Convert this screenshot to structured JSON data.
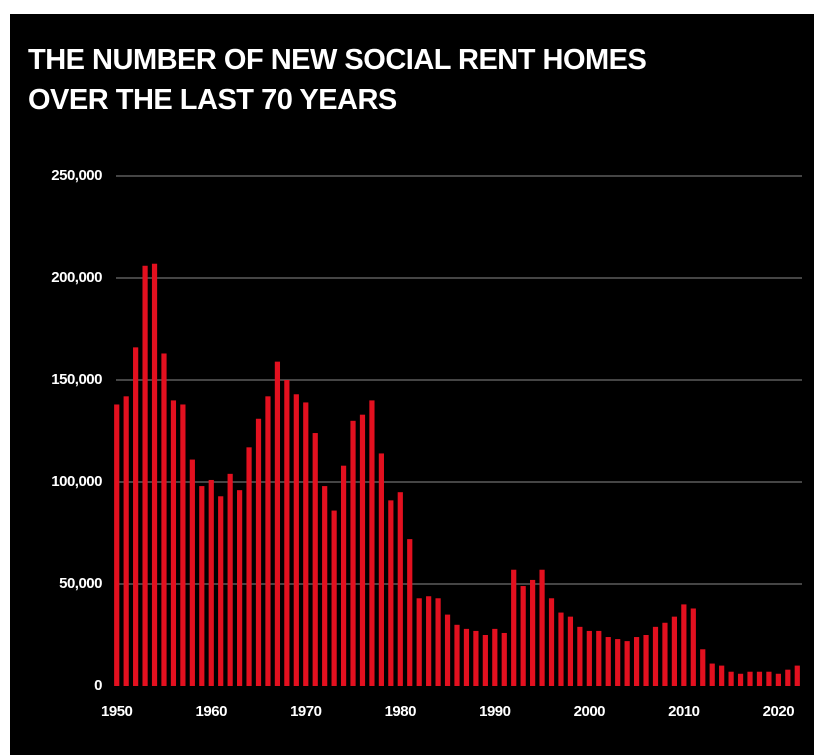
{
  "chart_data": {
    "type": "bar",
    "title": "THE NUMBER OF NEW SOCIAL RENT HOMES OVER THE LAST 70 YEARS",
    "x": [
      1950,
      1951,
      1952,
      1953,
      1954,
      1955,
      1956,
      1957,
      1958,
      1959,
      1960,
      1961,
      1962,
      1963,
      1964,
      1965,
      1966,
      1967,
      1968,
      1969,
      1970,
      1971,
      1972,
      1973,
      1974,
      1975,
      1976,
      1977,
      1978,
      1979,
      1980,
      1981,
      1982,
      1983,
      1984,
      1985,
      1986,
      1987,
      1988,
      1989,
      1990,
      1991,
      1992,
      1993,
      1994,
      1995,
      1996,
      1997,
      1998,
      1999,
      2000,
      2001,
      2002,
      2003,
      2004,
      2005,
      2006,
      2007,
      2008,
      2009,
      2010,
      2011,
      2012,
      2013,
      2014,
      2015,
      2016,
      2017,
      2018,
      2019,
      2020,
      2021,
      2022
    ],
    "values": [
      138000,
      142000,
      166000,
      206000,
      207000,
      163000,
      140000,
      138000,
      111000,
      98000,
      101000,
      93000,
      104000,
      96000,
      117000,
      131000,
      142000,
      159000,
      150000,
      143000,
      139000,
      124000,
      98000,
      86000,
      108000,
      130000,
      133000,
      140000,
      114000,
      91000,
      95000,
      72000,
      43000,
      44000,
      43000,
      35000,
      30000,
      28000,
      27000,
      25000,
      28000,
      26000,
      57000,
      49000,
      52000,
      57000,
      43000,
      36000,
      34000,
      29000,
      27000,
      27000,
      24000,
      23000,
      22000,
      24000,
      25000,
      29000,
      31000,
      34000,
      40000,
      38000,
      18000,
      11000,
      10000,
      7000,
      6000,
      7000,
      7000,
      7000,
      6000,
      8000,
      10000
    ],
    "color": "#e3101f",
    "xlim": [
      1949.5,
      2022.5
    ],
    "xticks": [
      1950,
      1960,
      1970,
      1980,
      1990,
      2000,
      2010,
      2020
    ],
    "ylim": [
      0,
      250000
    ],
    "yticks": [
      0,
      {
        "value": 50000,
        "label": "50,000"
      },
      {
        "value": 100000,
        "label": "100,000"
      },
      {
        "value": 150000,
        "label": "150,000"
      },
      {
        "value": 200000,
        "label": "200,000"
      },
      {
        "value": 250000,
        "label": "250,000"
      }
    ],
    "grid": true
  }
}
